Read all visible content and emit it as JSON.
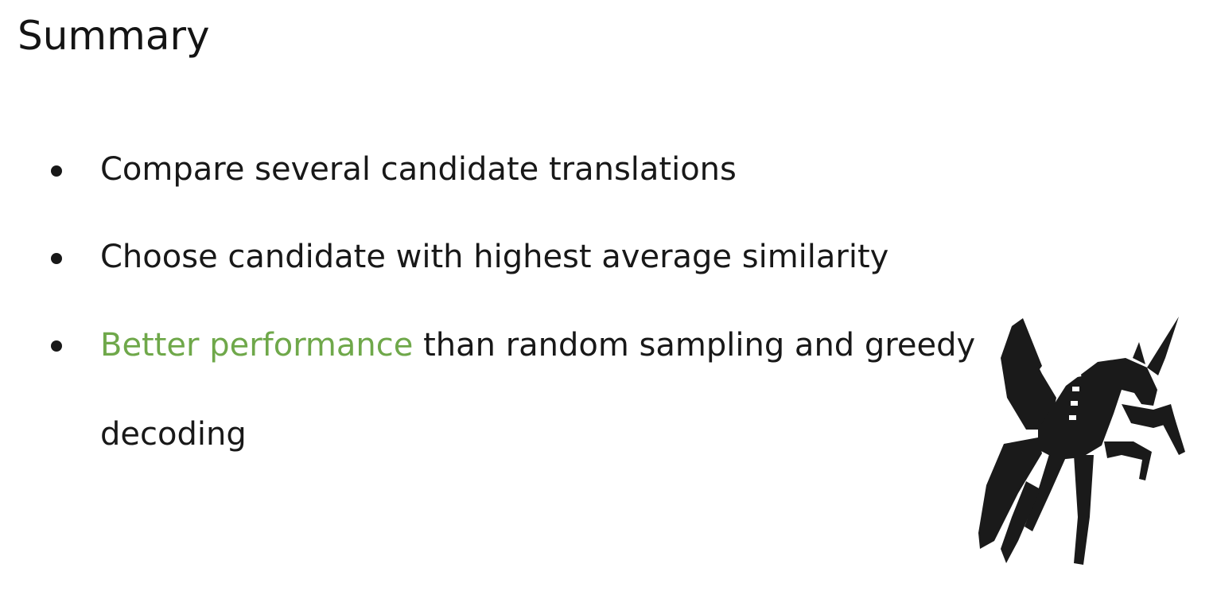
{
  "slide": {
    "title": "Summary",
    "bullets": [
      {
        "text": "Compare several candidate translations"
      },
      {
        "text": "Choose candidate with highest average similarity"
      },
      {
        "highlight": "Better performance",
        "rest": " than random sampling and greedy decoding"
      }
    ],
    "colors": {
      "accent": "#6fa84a",
      "text": "#181818"
    },
    "logo_icon": "pegasus-icon"
  }
}
